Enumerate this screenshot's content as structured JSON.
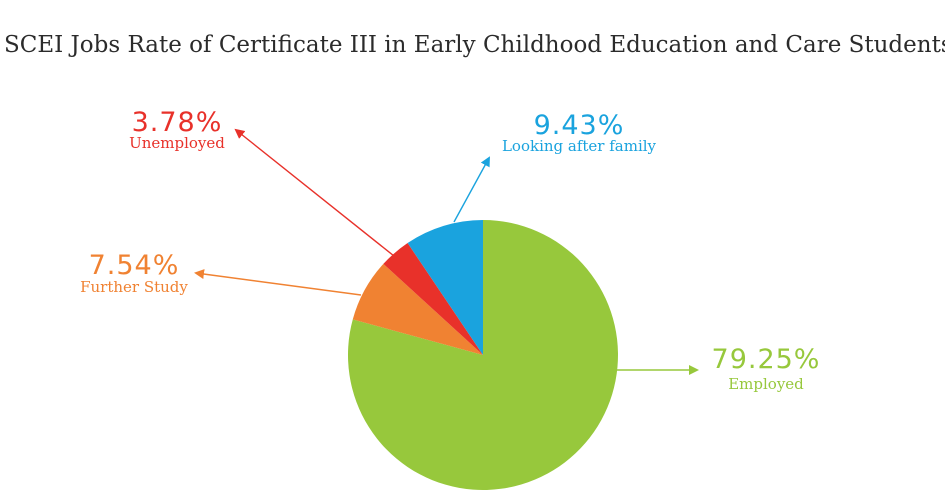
{
  "chart_data": {
    "type": "pie",
    "title": "SCEI Jobs Rate of Certificate III in Early Childhood Education and Care Students",
    "slices": [
      {
        "label": "Employed",
        "value": 79.25,
        "value_label": "79.25%",
        "color": "#97c83c"
      },
      {
        "label": "Further Study",
        "value": 7.54,
        "value_label": "7.54%",
        "color": "#f08232"
      },
      {
        "label": "Unemployed",
        "value": 3.78,
        "value_label": "3.78%",
        "color": "#e8312a"
      },
      {
        "label": "Looking after family",
        "value": 9.43,
        "value_label": "9.43%",
        "color": "#1aa3de"
      }
    ],
    "start_angle": "12 o'clock",
    "direction": "clockwise",
    "labels": "outside with arrows"
  }
}
